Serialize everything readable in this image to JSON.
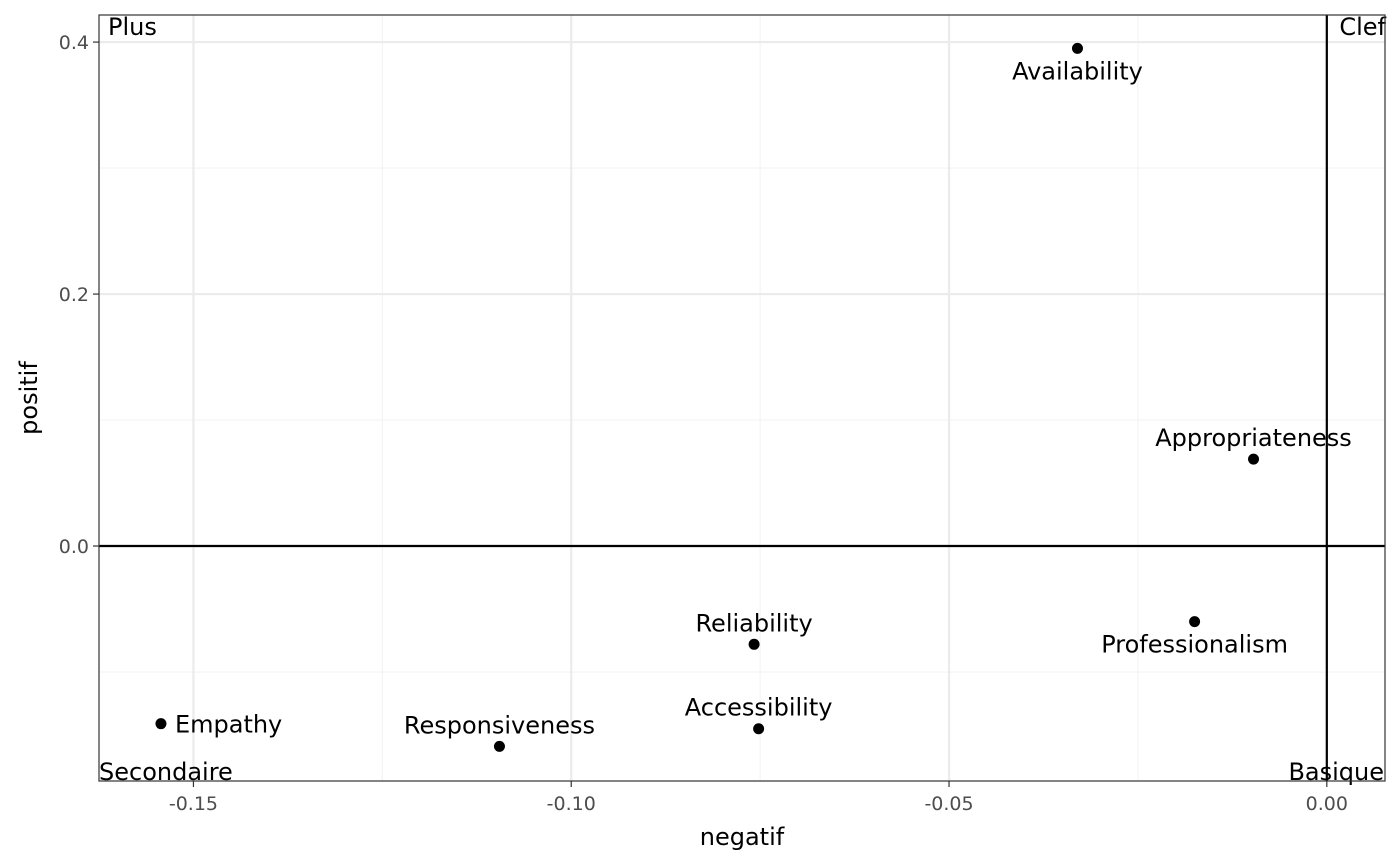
{
  "chart_data": {
    "type": "scatter",
    "xlabel": "negatif",
    "ylabel": "positif",
    "xlim": [
      -0.1625,
      0.0077
    ],
    "ylim": [
      -0.1865,
      0.4215
    ],
    "x_ticks": [
      {
        "value": -0.15,
        "label": "-0.15"
      },
      {
        "value": -0.1,
        "label": "-0.10"
      },
      {
        "value": -0.05,
        "label": "-0.05"
      },
      {
        "value": 0.0,
        "label": "0.00"
      }
    ],
    "y_ticks": [
      {
        "value": 0.0,
        "label": "0.0"
      },
      {
        "value": 0.2,
        "label": "0.2"
      },
      {
        "value": 0.4,
        "label": "0.4"
      }
    ],
    "grid": true,
    "reference_lines": {
      "x": 0,
      "y": 0
    },
    "points": [
      {
        "label": "Availability",
        "x": -0.033,
        "y": 0.395,
        "label_pos": "below"
      },
      {
        "label": "Appropriateness",
        "x": -0.0097,
        "y": 0.069,
        "label_pos": "above"
      },
      {
        "label": "Professionalism",
        "x": -0.0175,
        "y": -0.06,
        "label_pos": "below"
      },
      {
        "label": "Reliability",
        "x": -0.0758,
        "y": -0.078,
        "label_pos": "above"
      },
      {
        "label": "Accessibility",
        "x": -0.0752,
        "y": -0.145,
        "label_pos": "above"
      },
      {
        "label": "Responsiveness",
        "x": -0.1095,
        "y": -0.159,
        "label_pos": "above"
      },
      {
        "label": "Empathy",
        "x": -0.1543,
        "y": -0.141,
        "label_pos": "right"
      }
    ],
    "quadrant_labels": [
      {
        "text": "Plus",
        "corner": "top-left"
      },
      {
        "text": "Clef",
        "corner": "top-right"
      },
      {
        "text": "Secondaire",
        "corner": "bottom-left"
      },
      {
        "text": "Basique",
        "corner": "bottom-right"
      }
    ]
  },
  "colors": {
    "point": "#000000",
    "grid_major": "#ebebeb",
    "grid_minor": "#f3f3f3",
    "panel_border": "#333333",
    "reference_line": "#000000",
    "tick_text": "#4d4d4d"
  }
}
